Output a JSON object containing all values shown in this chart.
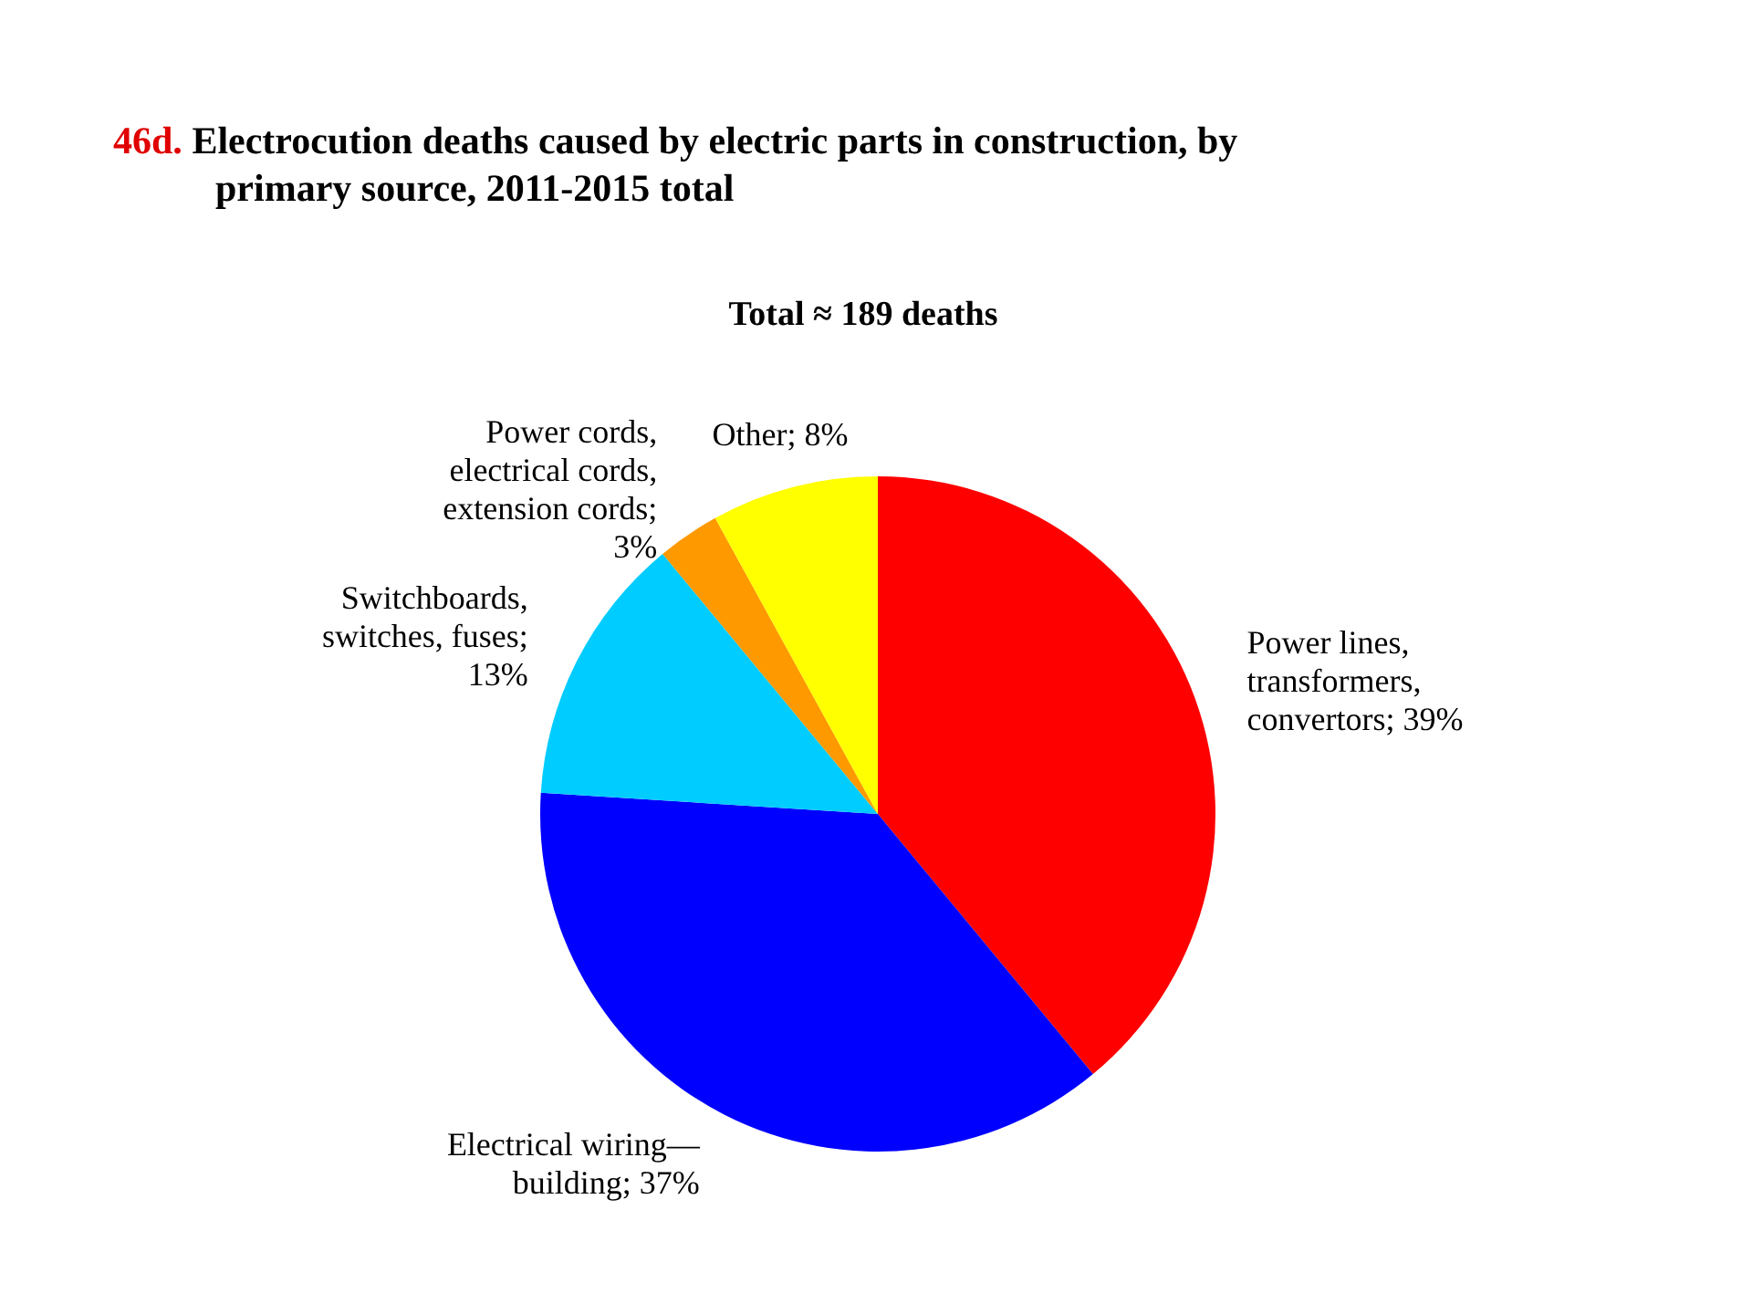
{
  "chart_data": {
    "type": "pie",
    "title": "46d. Electrocution deaths caused by electric parts in construction, by primary source, 2011-2015 total",
    "subtitle": "Total ≈ 189 deaths",
    "categories": [
      "Power lines, transformers, convertors",
      "Electrical wiring—building",
      "Switchboards, switches, fuses",
      "Power cords, electrical cords, extension cords",
      "Other"
    ],
    "values": [
      39,
      37,
      13,
      3,
      8
    ],
    "value_labels": [
      "; 39%",
      "; 37%",
      "; 13%",
      "; 3%",
      "; 8%"
    ],
    "colors": [
      "#ff0000",
      "#0000ff",
      "#00ccff",
      "#ff9900",
      "#ffff00"
    ]
  }
}
